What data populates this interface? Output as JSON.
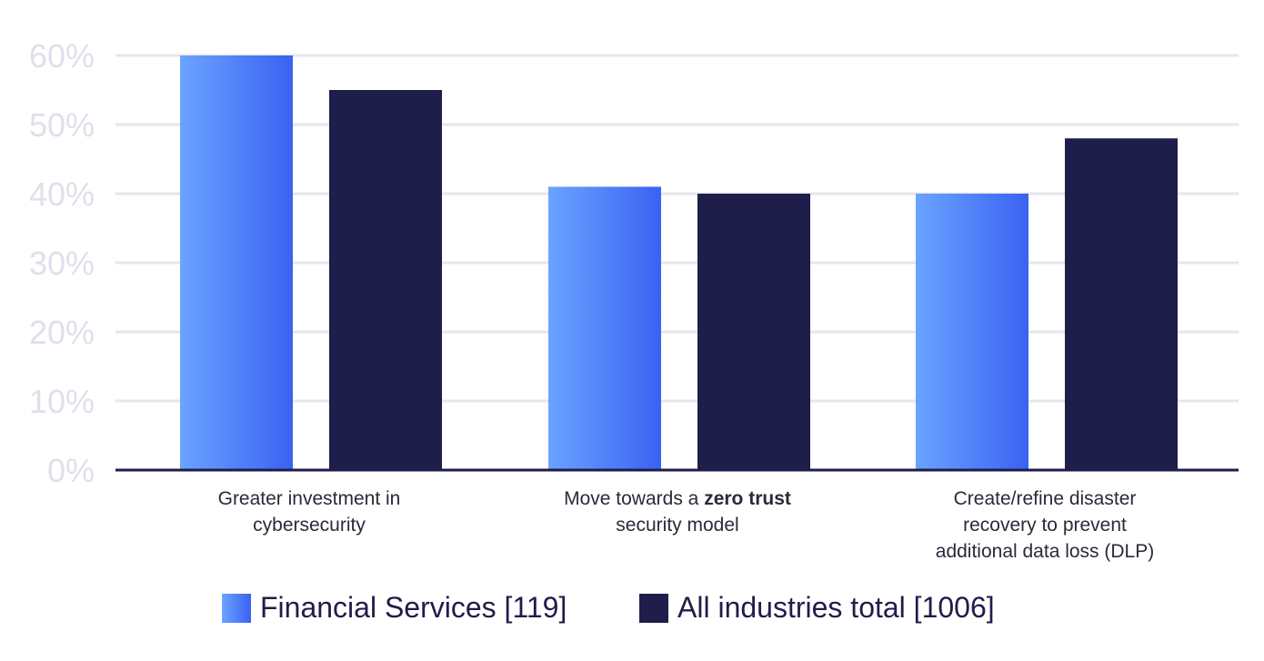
{
  "chart_data": {
    "type": "bar",
    "categories": [
      [
        "Greater investment in",
        "cybersecurity"
      ],
      [
        "Move towards a |zero trust|",
        "security model"
      ],
      [
        "Create/refine disaster",
        "recovery to prevent",
        "additional data loss (DLP)"
      ]
    ],
    "series": [
      {
        "name": "Financial Services [119]",
        "values": [
          60,
          41,
          40
        ],
        "color_start": "#6aa3ff",
        "color_end": "#3a62f2"
      },
      {
        "name": "All industries total [1006]",
        "values": [
          55,
          40,
          48
        ],
        "color": "#1f1d4a"
      }
    ],
    "ylim": [
      0,
      60
    ],
    "yticks": [
      "0%",
      "10%",
      "20%",
      "30%",
      "40%",
      "50%",
      "60%"
    ],
    "grid": true,
    "legend": "bottom"
  }
}
